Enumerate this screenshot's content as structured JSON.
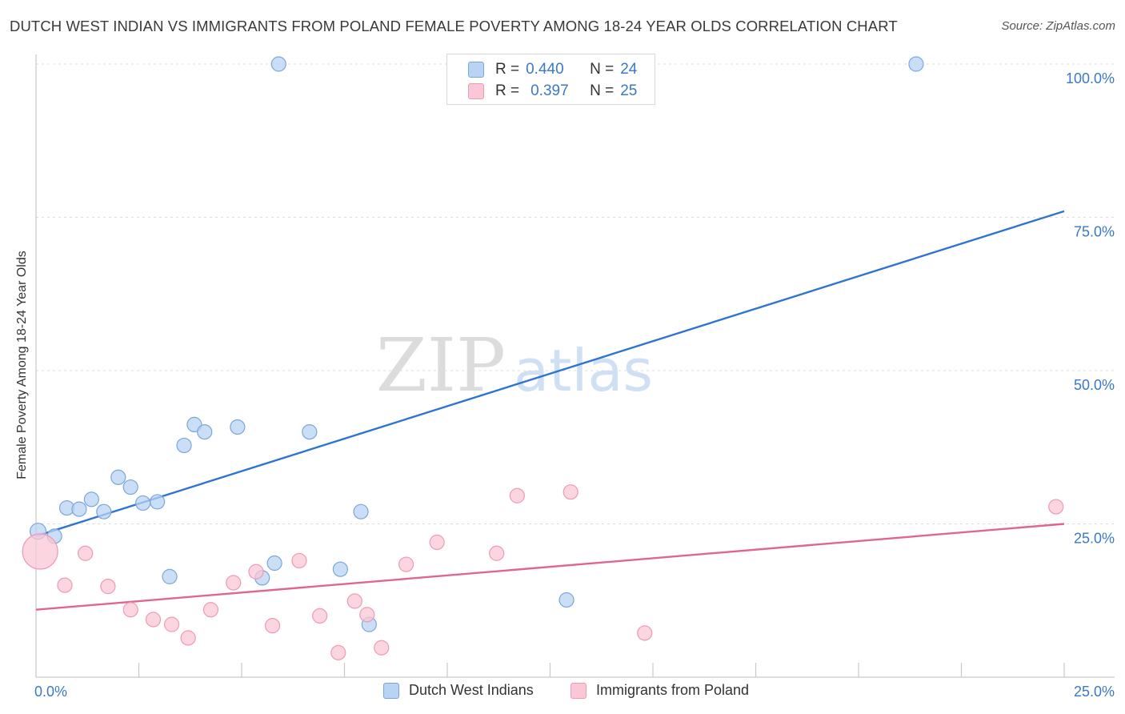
{
  "title": "DUTCH WEST INDIAN VS IMMIGRANTS FROM POLAND FEMALE POVERTY AMONG 18-24 YEAR OLDS CORRELATION CHART",
  "source": "Source: ZipAtlas.com",
  "watermark": {
    "zip": "ZIP",
    "atlas": "atlas"
  },
  "colors": {
    "blue_fill": "#b8d3f3",
    "blue_stroke": "#7aa6dc",
    "blue_line": "#2f74d0",
    "pink_fill": "#f9c7d5",
    "pink_stroke": "#ee9ab3",
    "pink_line": "#e0668f",
    "axis_label": "#3a78c9"
  },
  "legend": {
    "rows": [
      {
        "r_label": "R =",
        "r_value": "0.440",
        "n_label": "N =",
        "n_value": "24"
      },
      {
        "r_label": "R =",
        "r_value": "0.397",
        "n_label": "N =",
        "n_value": "25"
      }
    ]
  },
  "bottom_legend": [
    "Dutch West Indians",
    "Immigrants from Poland"
  ],
  "chart_data": {
    "type": "scatter",
    "title": "DUTCH WEST INDIAN VS IMMIGRANTS FROM POLAND FEMALE POVERTY AMONG 18-24 YEAR OLDS CORRELATION CHART",
    "xlabel": "",
    "ylabel": "Female Poverty Among 18-24 Year Olds",
    "xlim": [
      0,
      25
    ],
    "ylim": [
      0,
      100
    ],
    "x_ticks": [
      "0.0%",
      "25.0%"
    ],
    "y_ticks": [
      {
        "value": 25,
        "label": "25.0%"
      },
      {
        "value": 50,
        "label": "50.0%"
      },
      {
        "value": 75,
        "label": "75.0%"
      },
      {
        "value": 100,
        "label": "100.0%"
      }
    ],
    "grid": true,
    "legend_position": "top-center",
    "series": [
      {
        "name": "Dutch West Indians",
        "r": 0.44,
        "n": 24,
        "trend": {
          "x": [
            0,
            25
          ],
          "y": [
            23.0,
            76.0
          ]
        },
        "points": [
          [
            0.05,
            23.8,
            10
          ],
          [
            0.45,
            23.0,
            9
          ],
          [
            0.75,
            27.6,
            9
          ],
          [
            1.05,
            27.4,
            9
          ],
          [
            1.35,
            29.0,
            9
          ],
          [
            1.65,
            27.0,
            9
          ],
          [
            2.0,
            32.6,
            9
          ],
          [
            2.3,
            31.0,
            9
          ],
          [
            2.6,
            28.4,
            9
          ],
          [
            2.95,
            28.6,
            9
          ],
          [
            3.25,
            16.4,
            9
          ],
          [
            3.6,
            37.8,
            9
          ],
          [
            3.85,
            41.2,
            9
          ],
          [
            4.1,
            40.0,
            9
          ],
          [
            4.9,
            40.8,
            9
          ],
          [
            5.9,
            100.0,
            9
          ],
          [
            5.5,
            16.2,
            9
          ],
          [
            5.8,
            18.6,
            9
          ],
          [
            6.65,
            40.0,
            9
          ],
          [
            7.4,
            17.6,
            9
          ],
          [
            7.9,
            27.0,
            9
          ],
          [
            8.1,
            8.6,
            9
          ],
          [
            12.9,
            12.6,
            9
          ],
          [
            21.4,
            100.0,
            9
          ]
        ]
      },
      {
        "name": "Immigrants from Poland",
        "r": 0.397,
        "n": 25,
        "trend": {
          "x": [
            0,
            25
          ],
          "y": [
            11.0,
            25.0
          ]
        },
        "points": [
          [
            0.1,
            20.5,
            22
          ],
          [
            0.7,
            15.0,
            9
          ],
          [
            1.2,
            20.2,
            9
          ],
          [
            1.75,
            14.8,
            9
          ],
          [
            2.3,
            11.0,
            9
          ],
          [
            2.85,
            9.4,
            9
          ],
          [
            3.3,
            8.6,
            9
          ],
          [
            3.7,
            6.4,
            9
          ],
          [
            4.25,
            11.0,
            9
          ],
          [
            4.8,
            15.4,
            9
          ],
          [
            5.35,
            17.2,
            9
          ],
          [
            5.75,
            8.4,
            9
          ],
          [
            6.4,
            19.0,
            9
          ],
          [
            6.9,
            10.0,
            9
          ],
          [
            7.35,
            4.0,
            9
          ],
          [
            7.75,
            12.4,
            9
          ],
          [
            8.05,
            10.2,
            9
          ],
          [
            8.4,
            4.8,
            9
          ],
          [
            9.0,
            18.4,
            9
          ],
          [
            9.75,
            22.0,
            9
          ],
          [
            11.2,
            20.2,
            9
          ],
          [
            11.7,
            29.6,
            9
          ],
          [
            13.0,
            30.2,
            9
          ],
          [
            14.8,
            7.2,
            9
          ],
          [
            24.8,
            27.8,
            9
          ]
        ]
      }
    ]
  }
}
